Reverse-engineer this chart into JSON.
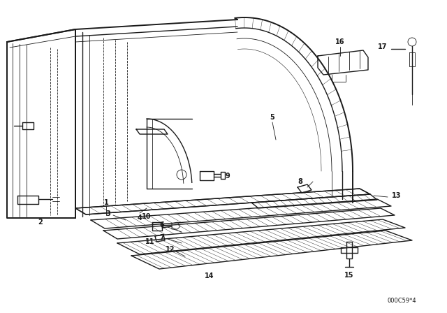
{
  "bg_color": "#ffffff",
  "line_color": "#1a1a1a",
  "watermark": "000C59*4",
  "lw_thick": 1.4,
  "lw_med": 1.0,
  "lw_thin": 0.6,
  "lw_hair": 0.4
}
